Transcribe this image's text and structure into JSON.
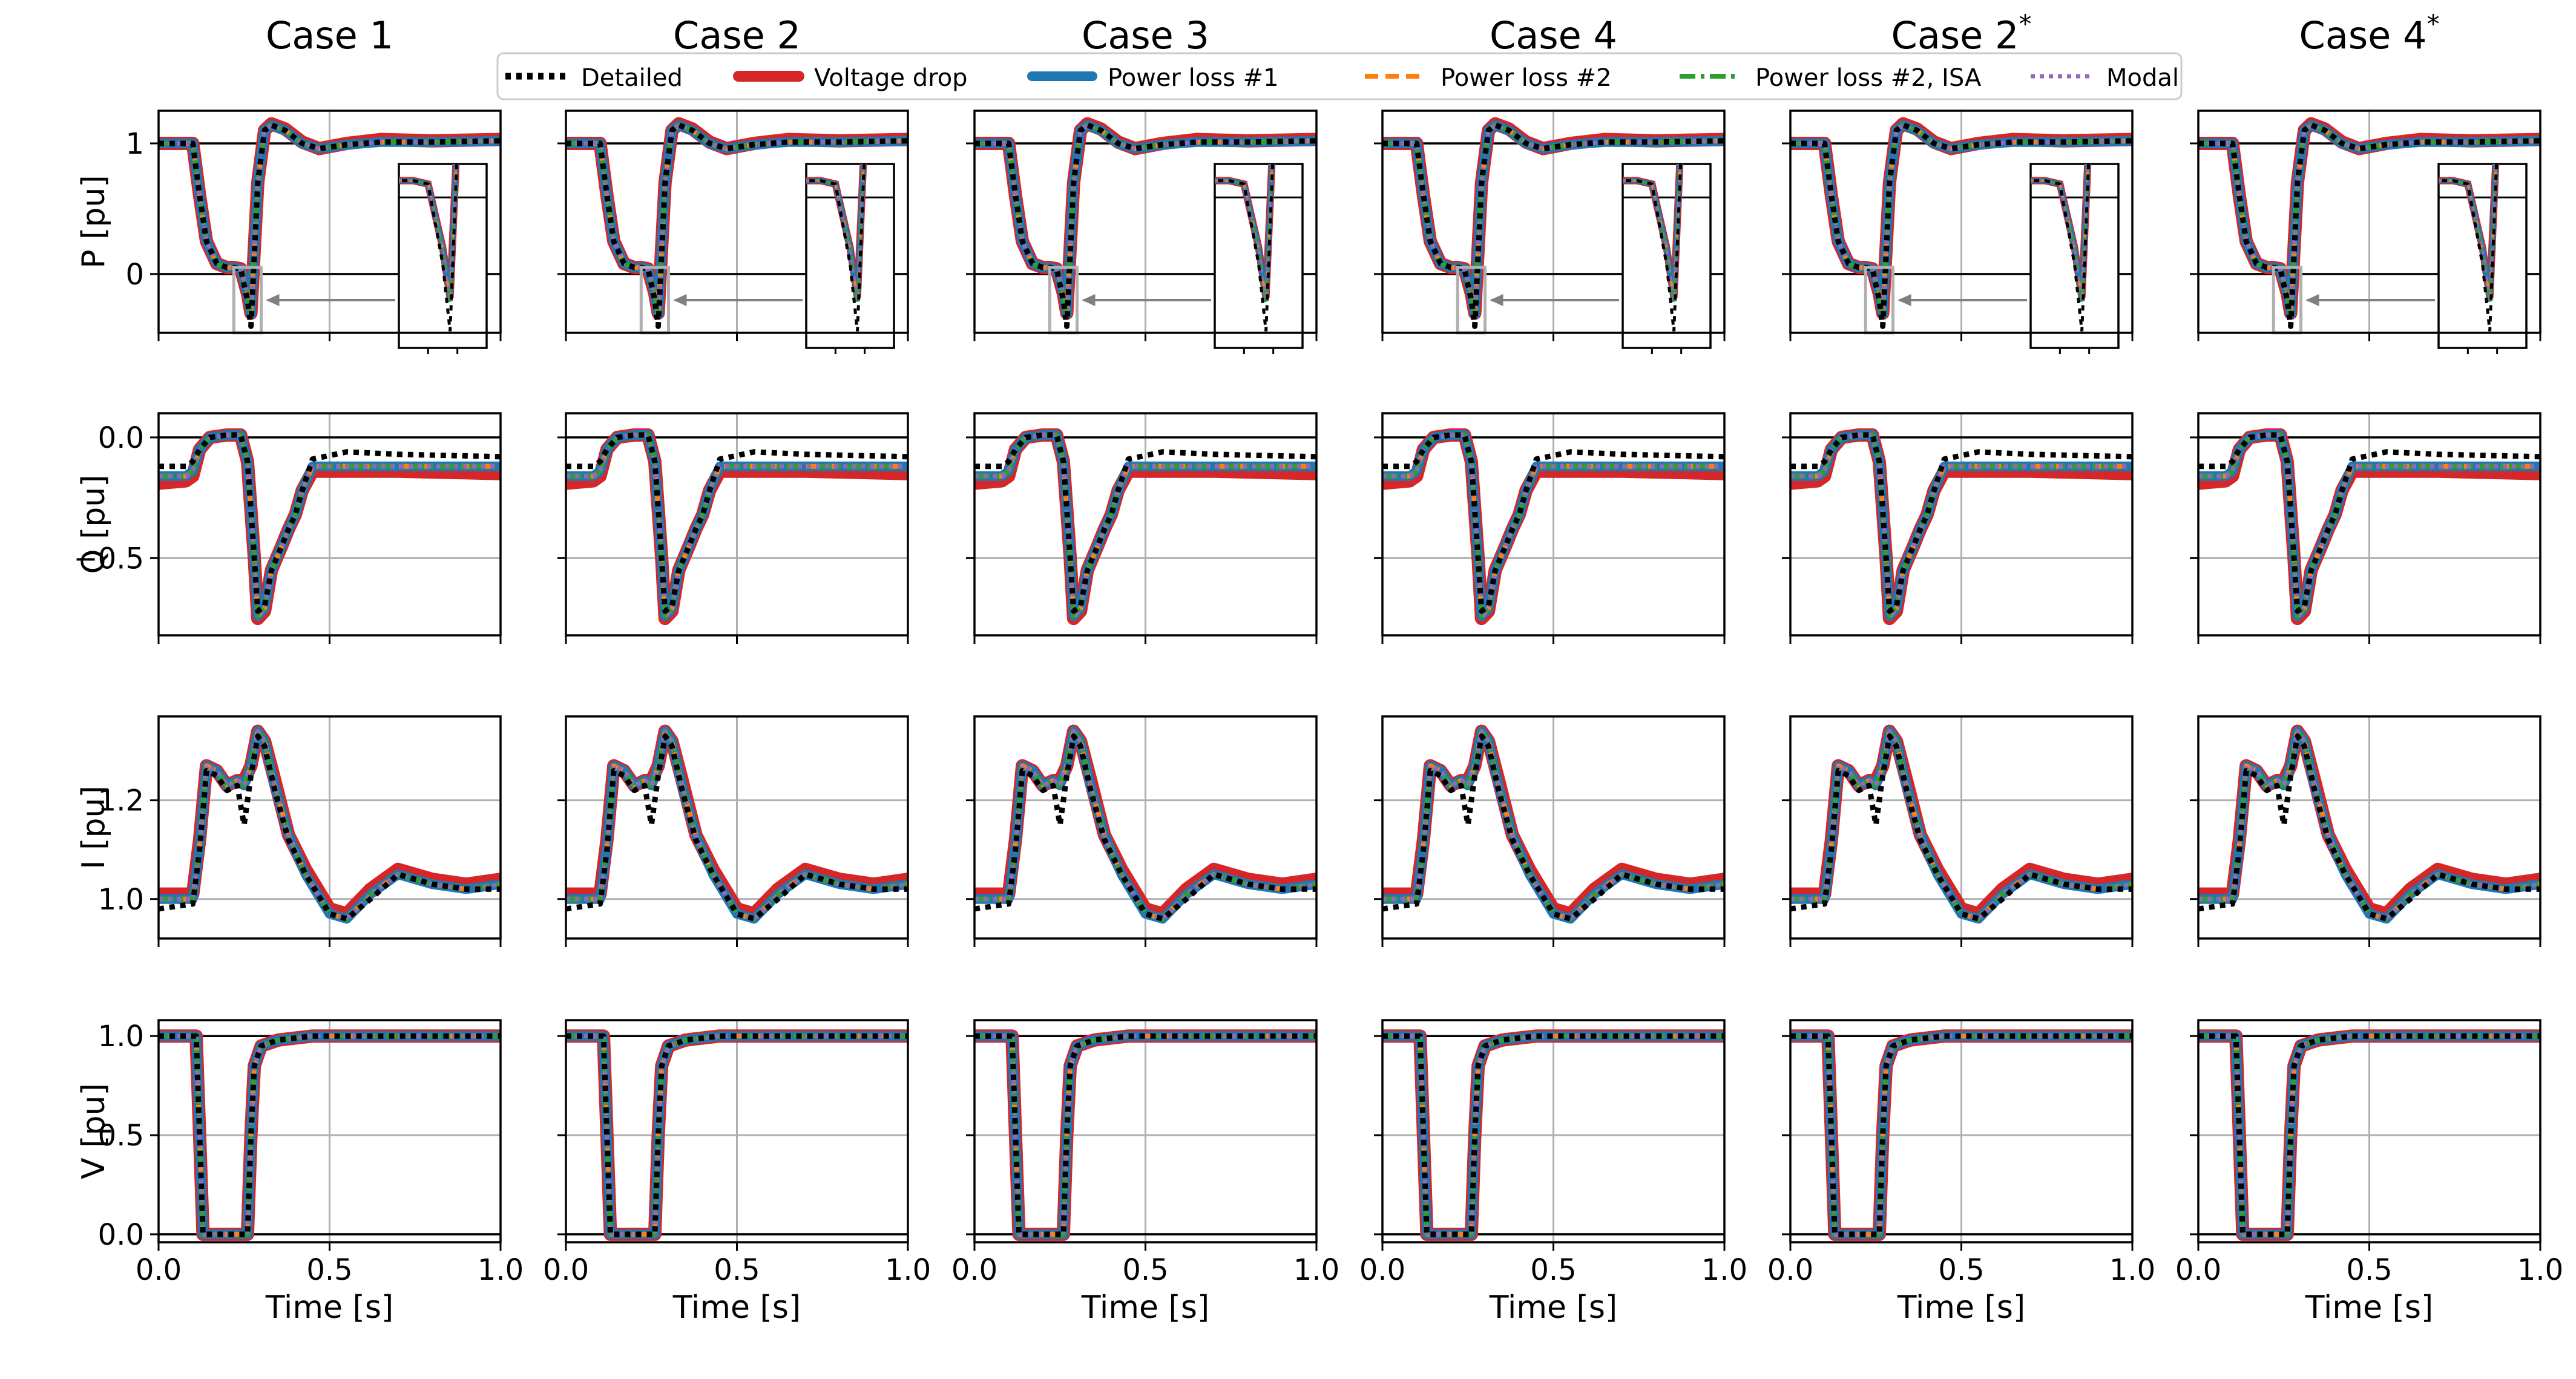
{
  "figure": {
    "columns": [
      "Case 1",
      "Case 2",
      "Case 3",
      "Case 4",
      "Case 2*",
      "Case 4*"
    ],
    "row_labels": [
      "P [pu]",
      "Q [pu]",
      "I [pu]",
      "V [pu]"
    ],
    "xlabel": "Time [s]",
    "legend": [
      {
        "name": "Detailed",
        "color": "#000000",
        "style": "dotted"
      },
      {
        "name": "Voltage drop",
        "color": "#d62728",
        "style": "solid"
      },
      {
        "name": "Power loss #1",
        "color": "#1f77b4",
        "style": "solid"
      },
      {
        "name": "Power loss #2",
        "color": "#ff7f0e",
        "style": "dashed"
      },
      {
        "name": "Power loss #2, ISA",
        "color": "#2ca02c",
        "style": "dashdot"
      },
      {
        "name": "Modal",
        "color": "#9467bd",
        "style": "dotted"
      }
    ]
  },
  "chart_data": [
    {
      "type": "line",
      "row": "P",
      "ylabel": "P [pu]",
      "xlabel": "Time [s]",
      "xlim": [
        0.0,
        1.0
      ],
      "ylim": [
        -0.45,
        1.25
      ],
      "xticks": [
        0.0,
        0.5,
        1.0
      ],
      "xtick_labels": [
        "0.0",
        "0.5",
        "1.0"
      ],
      "yticks": [
        0,
        1
      ],
      "ytick_labels": [
        "0",
        "1"
      ],
      "grid": true,
      "hlines": [
        0,
        1
      ],
      "inset": true,
      "x": [
        0.0,
        0.1,
        0.12,
        0.14,
        0.17,
        0.2,
        0.22,
        0.24,
        0.26,
        0.27,
        0.29,
        0.31,
        0.33,
        0.37,
        0.42,
        0.47,
        0.55,
        0.65,
        0.8,
        1.0
      ],
      "series": [
        {
          "name": "Detailed",
          "values": [
            1.0,
            1.0,
            0.6,
            0.25,
            0.08,
            0.05,
            0.05,
            0.04,
            -0.2,
            -0.4,
            0.7,
            1.1,
            1.14,
            1.1,
            1.0,
            0.96,
            0.99,
            1.01,
            1.01,
            1.02
          ]
        },
        {
          "name": "Voltage drop",
          "values": [
            1.0,
            1.0,
            0.6,
            0.25,
            0.08,
            0.05,
            0.05,
            0.04,
            -0.15,
            -0.3,
            0.7,
            1.1,
            1.15,
            1.11,
            1.01,
            0.96,
            1.0,
            1.03,
            1.02,
            1.03
          ]
        },
        {
          "name": "Power loss #1",
          "values": [
            1.0,
            1.0,
            0.6,
            0.25,
            0.08,
            0.05,
            0.05,
            0.04,
            -0.15,
            -0.31,
            0.7,
            1.1,
            1.14,
            1.1,
            1.0,
            0.96,
            0.99,
            1.01,
            1.01,
            1.02
          ]
        },
        {
          "name": "Power loss #2",
          "values": [
            1.0,
            1.0,
            0.6,
            0.25,
            0.08,
            0.05,
            0.05,
            0.04,
            -0.15,
            -0.31,
            0.7,
            1.1,
            1.14,
            1.1,
            1.0,
            0.96,
            0.99,
            1.01,
            1.01,
            1.02
          ]
        },
        {
          "name": "Power loss #2, ISA",
          "values": [
            1.0,
            1.0,
            0.6,
            0.25,
            0.08,
            0.05,
            0.05,
            0.04,
            -0.15,
            -0.32,
            0.7,
            1.1,
            1.14,
            1.1,
            1.0,
            0.96,
            0.99,
            1.01,
            1.01,
            1.02
          ]
        },
        {
          "name": "Modal",
          "values": [
            1.0,
            1.0,
            0.6,
            0.25,
            0.08,
            0.05,
            0.05,
            0.04,
            -0.15,
            -0.31,
            0.7,
            1.1,
            1.14,
            1.1,
            1.0,
            0.96,
            0.99,
            1.01,
            1.01,
            1.02
          ]
        }
      ]
    },
    {
      "type": "line",
      "row": "Q",
      "ylabel": "Q [pu]",
      "xlabel": "Time [s]",
      "xlim": [
        0.0,
        1.0
      ],
      "ylim": [
        -0.82,
        0.1
      ],
      "xticks": [
        0.0,
        0.5,
        1.0
      ],
      "xtick_labels": [
        "0.0",
        "0.5",
        "1.0"
      ],
      "yticks": [
        0.0,
        -0.5
      ],
      "ytick_labels": [
        "0.0",
        "−0.5"
      ],
      "grid": true,
      "hlines": [
        0
      ],
      "x": [
        0.0,
        0.08,
        0.1,
        0.12,
        0.15,
        0.2,
        0.24,
        0.26,
        0.28,
        0.29,
        0.31,
        0.33,
        0.36,
        0.38,
        0.4,
        0.42,
        0.45,
        0.55,
        0.7,
        1.0
      ],
      "series": [
        {
          "name": "Detailed",
          "values": [
            -0.12,
            -0.12,
            -0.1,
            -0.05,
            0.0,
            0.01,
            0.01,
            -0.1,
            -0.5,
            -0.72,
            -0.7,
            -0.55,
            -0.45,
            -0.38,
            -0.32,
            -0.22,
            -0.09,
            -0.06,
            -0.07,
            -0.08
          ]
        },
        {
          "name": "Voltage drop",
          "values": [
            -0.19,
            -0.18,
            -0.16,
            -0.05,
            0.0,
            0.01,
            0.01,
            -0.1,
            -0.5,
            -0.75,
            -0.72,
            -0.55,
            -0.45,
            -0.38,
            -0.32,
            -0.22,
            -0.14,
            -0.14,
            -0.14,
            -0.15
          ]
        },
        {
          "name": "Power loss #1",
          "values": [
            -0.16,
            -0.16,
            -0.14,
            -0.05,
            0.0,
            0.01,
            0.01,
            -0.1,
            -0.5,
            -0.74,
            -0.71,
            -0.55,
            -0.45,
            -0.38,
            -0.32,
            -0.22,
            -0.12,
            -0.12,
            -0.12,
            -0.12
          ]
        },
        {
          "name": "Power loss #2",
          "values": [
            -0.16,
            -0.16,
            -0.14,
            -0.05,
            0.0,
            0.01,
            0.01,
            -0.1,
            -0.5,
            -0.74,
            -0.71,
            -0.55,
            -0.45,
            -0.38,
            -0.32,
            -0.22,
            -0.12,
            -0.12,
            -0.12,
            -0.12
          ]
        },
        {
          "name": "Power loss #2, ISA",
          "values": [
            -0.16,
            -0.16,
            -0.14,
            -0.05,
            0.0,
            0.01,
            0.01,
            -0.1,
            -0.5,
            -0.74,
            -0.71,
            -0.55,
            -0.45,
            -0.38,
            -0.32,
            -0.22,
            -0.12,
            -0.12,
            -0.12,
            -0.12
          ]
        },
        {
          "name": "Modal",
          "values": [
            -0.16,
            -0.16,
            -0.14,
            -0.05,
            0.0,
            0.01,
            0.01,
            -0.1,
            -0.5,
            -0.74,
            -0.71,
            -0.55,
            -0.45,
            -0.38,
            -0.32,
            -0.22,
            -0.12,
            -0.12,
            -0.12,
            -0.12
          ]
        }
      ]
    },
    {
      "type": "line",
      "row": "I",
      "ylabel": "I [pu]",
      "xlabel": "Time [s]",
      "xlim": [
        0.0,
        1.0
      ],
      "ylim": [
        0.92,
        1.37
      ],
      "xticks": [
        0.0,
        0.5,
        1.0
      ],
      "xtick_labels": [
        "0.0",
        "0.5",
        "1.0"
      ],
      "yticks": [
        1.0,
        1.2
      ],
      "ytick_labels": [
        "1.0",
        "1.2"
      ],
      "grid": true,
      "x": [
        0.0,
        0.1,
        0.12,
        0.14,
        0.17,
        0.2,
        0.23,
        0.25,
        0.27,
        0.29,
        0.31,
        0.34,
        0.38,
        0.43,
        0.5,
        0.55,
        0.62,
        0.7,
        0.8,
        0.9,
        1.0
      ],
      "series": [
        {
          "name": "Detailed",
          "values": [
            0.98,
            0.99,
            1.1,
            1.26,
            1.25,
            1.22,
            1.23,
            1.15,
            1.25,
            1.33,
            1.31,
            1.22,
            1.12,
            1.05,
            0.97,
            0.96,
            1.0,
            1.05,
            1.03,
            1.02,
            1.02
          ]
        },
        {
          "name": "Voltage drop",
          "values": [
            1.01,
            1.01,
            1.12,
            1.27,
            1.26,
            1.23,
            1.24,
            1.24,
            1.27,
            1.34,
            1.32,
            1.24,
            1.13,
            1.06,
            0.98,
            0.97,
            1.02,
            1.06,
            1.04,
            1.03,
            1.04
          ]
        },
        {
          "name": "Power loss #1",
          "values": [
            1.0,
            1.0,
            1.11,
            1.27,
            1.26,
            1.23,
            1.24,
            1.23,
            1.27,
            1.34,
            1.32,
            1.23,
            1.13,
            1.05,
            0.97,
            0.96,
            1.01,
            1.05,
            1.03,
            1.02,
            1.03
          ]
        },
        {
          "name": "Power loss #2",
          "values": [
            1.0,
            1.0,
            1.11,
            1.27,
            1.26,
            1.23,
            1.24,
            1.23,
            1.27,
            1.34,
            1.32,
            1.23,
            1.13,
            1.05,
            0.97,
            0.96,
            1.01,
            1.05,
            1.03,
            1.02,
            1.03
          ]
        },
        {
          "name": "Power loss #2, ISA",
          "values": [
            1.0,
            1.0,
            1.11,
            1.27,
            1.26,
            1.23,
            1.24,
            1.23,
            1.27,
            1.34,
            1.32,
            1.23,
            1.13,
            1.05,
            0.97,
            0.96,
            1.01,
            1.05,
            1.03,
            1.02,
            1.03
          ]
        },
        {
          "name": "Modal",
          "values": [
            1.0,
            1.0,
            1.11,
            1.27,
            1.26,
            1.23,
            1.24,
            1.23,
            1.27,
            1.34,
            1.32,
            1.23,
            1.13,
            1.05,
            0.97,
            0.96,
            1.01,
            1.05,
            1.03,
            1.02,
            1.03
          ]
        }
      ]
    },
    {
      "type": "line",
      "row": "V",
      "ylabel": "V [pu]",
      "xlabel": "Time [s]",
      "xlim": [
        0.0,
        1.0
      ],
      "ylim": [
        -0.04,
        1.08
      ],
      "xticks": [
        0.0,
        0.5,
        1.0
      ],
      "xtick_labels": [
        "0.0",
        "0.5",
        "1.0"
      ],
      "yticks": [
        0.0,
        0.5,
        1.0
      ],
      "ytick_labels": [
        "0.0",
        "0.5",
        "1.0"
      ],
      "grid": true,
      "hlines": [
        0,
        1
      ],
      "x": [
        0.0,
        0.1,
        0.11,
        0.12,
        0.13,
        0.25,
        0.26,
        0.27,
        0.28,
        0.3,
        0.35,
        0.45,
        1.0
      ],
      "series": [
        {
          "name": "Detailed",
          "values": [
            1.0,
            1.0,
            1.0,
            0.5,
            0.0,
            0.0,
            0.0,
            0.5,
            0.85,
            0.95,
            0.98,
            1.0,
            1.0
          ]
        },
        {
          "name": "Voltage drop",
          "values": [
            1.0,
            1.0,
            1.0,
            0.5,
            0.0,
            0.0,
            0.0,
            0.5,
            0.85,
            0.95,
            0.98,
            1.0,
            1.0
          ]
        },
        {
          "name": "Power loss #1",
          "values": [
            1.0,
            1.0,
            1.0,
            0.5,
            0.0,
            0.0,
            0.0,
            0.5,
            0.85,
            0.95,
            0.98,
            1.0,
            1.0
          ]
        },
        {
          "name": "Power loss #2",
          "values": [
            1.0,
            1.0,
            1.0,
            0.5,
            0.0,
            0.0,
            0.0,
            0.5,
            0.85,
            0.95,
            0.98,
            1.0,
            1.0
          ]
        },
        {
          "name": "Power loss #2, ISA",
          "values": [
            1.0,
            1.0,
            1.0,
            0.5,
            0.0,
            0.0,
            0.0,
            0.5,
            0.85,
            0.95,
            0.98,
            1.0,
            1.0
          ]
        },
        {
          "name": "Modal",
          "values": [
            1.0,
            1.0,
            1.0,
            0.5,
            0.0,
            0.0,
            0.0,
            0.5,
            0.85,
            0.95,
            0.98,
            1.0,
            1.0
          ]
        }
      ]
    }
  ]
}
